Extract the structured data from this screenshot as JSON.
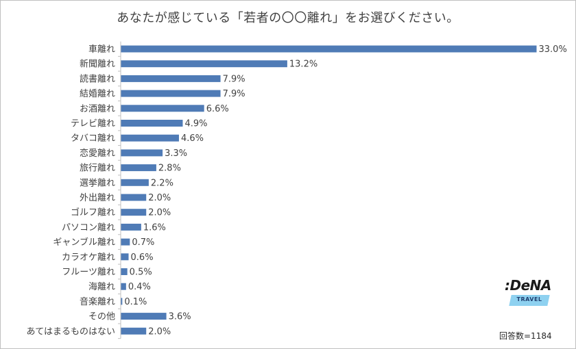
{
  "title": "あなたが感じている「若者の〇〇離れ」をお選びください。",
  "footnote": "回答数=1184",
  "logo": {
    "word": ":DeNA",
    "sub": "TRAVEL"
  },
  "colors": {
    "bar": "#4f7bb6",
    "text": "#404040",
    "axis": "#bfbfbf",
    "logo_badge": "#8ed1f0"
  },
  "chart_data": {
    "type": "bar",
    "orientation": "horizontal",
    "title": "あなたが感じている「若者の〇〇離れ」をお選びください。",
    "xlabel": "",
    "ylabel": "",
    "value_unit": "%",
    "xlim": [
      0,
      33
    ],
    "grid": false,
    "legend": "none",
    "categories": [
      "車離れ",
      "新聞離れ",
      "読書離れ",
      "結婚離れ",
      "お酒離れ",
      "テレビ離れ",
      "タバコ離れ",
      "恋愛離れ",
      "旅行離れ",
      "選挙離れ",
      "外出離れ",
      "ゴルフ離れ",
      "パソコン離れ",
      "ギャンブル離れ",
      "カラオケ離れ",
      "フルーツ離れ",
      "海離れ",
      "音楽離れ",
      "その他",
      "あてはまるものはない"
    ],
    "values": [
      33.0,
      13.2,
      7.9,
      7.9,
      6.6,
      4.9,
      4.6,
      3.3,
      2.8,
      2.2,
      2.0,
      2.0,
      1.6,
      0.7,
      0.6,
      0.5,
      0.4,
      0.1,
      3.6,
      2.0
    ],
    "value_labels": [
      "33.0%",
      "13.2%",
      "7.9%",
      "7.9%",
      "6.6%",
      "4.9%",
      "4.6%",
      "3.3%",
      "2.8%",
      "2.2%",
      "2.0%",
      "2.0%",
      "1.6%",
      "0.7%",
      "0.6%",
      "0.5%",
      "0.4%",
      "0.1%",
      "3.6%",
      "2.0%"
    ]
  }
}
